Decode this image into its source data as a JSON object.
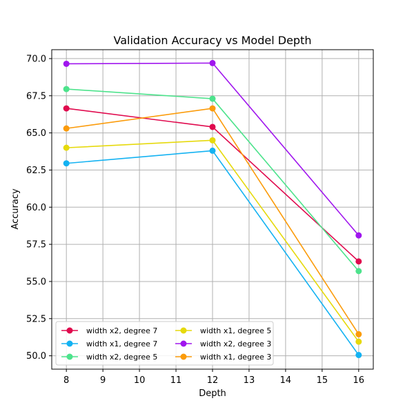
{
  "chart_data": {
    "type": "line",
    "title": "Validation Accuracy vs Model Depth",
    "xlabel": "Depth",
    "ylabel": "Accuracy",
    "x": [
      8,
      12,
      16
    ],
    "xlim": [
      7.6,
      16.4
    ],
    "ylim": [
      49.1,
      70.6
    ],
    "xticks": [
      8,
      9,
      10,
      11,
      12,
      13,
      14,
      15,
      16
    ],
    "yticks": [
      50.0,
      52.5,
      55.0,
      57.5,
      60.0,
      62.5,
      65.0,
      67.5,
      70.0
    ],
    "xtick_labels": [
      "8",
      "9",
      "10",
      "11",
      "12",
      "13",
      "14",
      "15",
      "16"
    ],
    "ytick_labels": [
      "50.0",
      "52.5",
      "55.0",
      "57.5",
      "60.0",
      "62.5",
      "65.0",
      "67.5",
      "70.0"
    ],
    "grid": true,
    "legend_position": "lower-left",
    "legend_columns": 2,
    "series": [
      {
        "name": "width x2, degree 7",
        "color": "#e0094d",
        "values": [
          66.65,
          65.4,
          56.35
        ]
      },
      {
        "name": "width x1, degree 7",
        "color": "#13b2f2",
        "values": [
          62.95,
          63.8,
          50.05
        ]
      },
      {
        "name": "width x2, degree 5",
        "color": "#4de38c",
        "values": [
          67.95,
          67.3,
          55.7
        ]
      },
      {
        "name": "width x1, degree 5",
        "color": "#e6d90b",
        "values": [
          64.0,
          64.5,
          50.95
        ]
      },
      {
        "name": "width x2, degree 3",
        "color": "#a016ee",
        "values": [
          69.65,
          69.7,
          58.1
        ]
      },
      {
        "name": "width x1, degree 3",
        "color": "#fb9b0a",
        "values": [
          65.3,
          66.65,
          51.45
        ]
      }
    ]
  }
}
